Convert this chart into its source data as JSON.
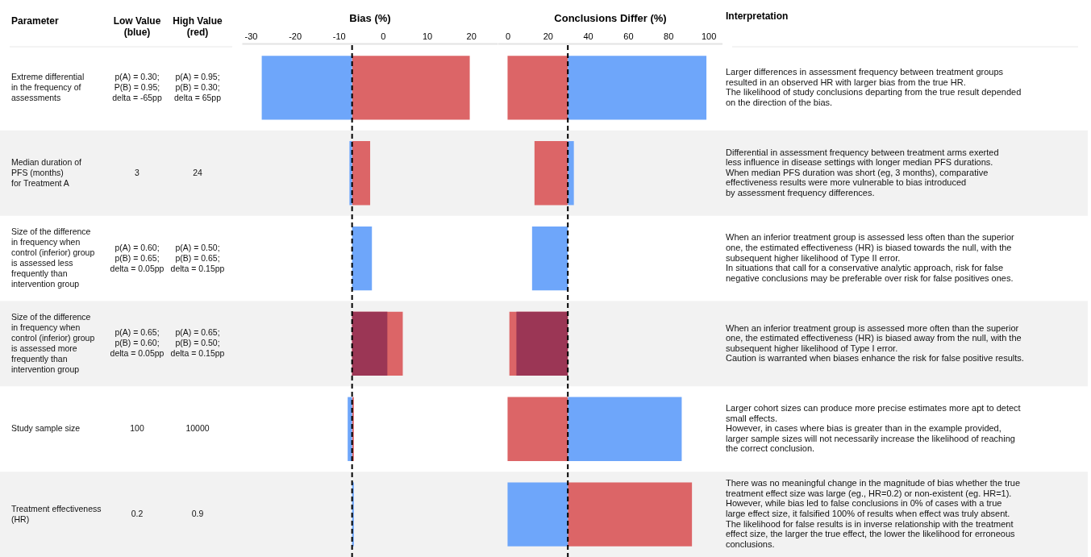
{
  "chart_data": [
    {
      "type": "other",
      "annotations": [
        "Parameter",
        "Low Value\n(blue)",
        "High Value\n(red)",
        "Extreme differential\nin the frequency of\nassessments",
        "p(A) = 0.30;\nP(B) = 0.95;\ndelta = -65pp",
        "p(A) = 0.95;\np(B) = 0.30;\ndelta = 65pp",
        "Median duration of\nPFS (months)\nfor Treatment A",
        "3",
        "24",
        "Size of the difference\nin frequency when\ncontrol (inferior) group\nis assessed less\nfrequently than\nintervention group",
        "p(A) = 0.60;\np(B) = 0.65;\ndelta = 0.05pp",
        "p(A) = 0.50;\np(B) = 0.65;\ndelta = 0.15pp",
        "Size of the difference\nin frequency when\ncontrol (inferior) group\nis assessed more\nfrequently than\nintervention group",
        "p(A) = 0.65;\np(B) = 0.60;\ndelta = 0.05pp",
        "p(A) = 0.65;\np(B) = 0.50;\ndelta = 0.15pp",
        "Study sample size",
        "100",
        "10000",
        "Treatment effectiveness\n(HR)",
        "0.2",
        "0.9"
      ]
    },
    {
      "type": "bar",
      "orientation": "horizontal",
      "xlabel": "Bias (%)",
      "categories": [
        null,
        null,
        null,
        null,
        null,
        null
      ],
      "series": [
        {
          "color": "#dc6567",
          "base": [
            -7,
            -7,
            null,
            -7,
            -7,
            null
          ],
          "values": [
            26.7,
            4.1,
            null,
            11.5,
            0.4,
            null
          ]
        },
        {
          "colors": [
            "#6ea6fa",
            "#6ea6fa",
            "#6ea6fa",
            "#9b3655",
            "#6ea6fa",
            "#6ea6fa"
          ],
          "base": [
            -7,
            -7,
            -7,
            -7,
            -7,
            -7
          ],
          "values": [
            -20.5,
            -0.6,
            4.5,
            8.0,
            -1.0,
            0.4
          ]
        }
      ],
      "xlim": [
        -32,
        26
      ],
      "xticks": [
        -30,
        -20,
        -10,
        0,
        10,
        20
      ],
      "tick_labels": "x",
      "ref_lines": [
        {
          "axis": "x",
          "value": -7,
          "color": "#000000",
          "line_style": "dashed"
        }
      ]
    },
    {
      "type": "bar",
      "orientation": "horizontal",
      "xlabel": "Conclusions Differ (%)",
      "categories": [
        null,
        null,
        null,
        null,
        null,
        null
      ],
      "series": [
        {
          "color": "#dc6567",
          "base": [
            30,
            30,
            null,
            30,
            30,
            30
          ],
          "values": [
            -30,
            -16.6,
            null,
            -29.1,
            -30,
            61.8
          ]
        },
        {
          "colors": [
            "#6ea6fa",
            "#6ea6fa",
            "#6ea6fa",
            "#9b3655",
            "#6ea6fa",
            "#6ea6fa"
          ],
          "base": [
            30,
            30,
            30,
            30,
            30,
            30
          ],
          "values": [
            69,
            3,
            -17.8,
            -25.6,
            56.7,
            -30
          ]
        }
      ],
      "xlim": [
        -5,
        107
      ],
      "xticks": [
        0,
        20,
        40,
        60,
        80,
        100
      ],
      "tick_labels": "x",
      "ref_lines": [
        {
          "axis": "x",
          "value": 30,
          "color": "#000000",
          "line_style": "dashed"
        }
      ]
    },
    {
      "type": "other",
      "title": "Interpretation",
      "annotations": [
        "Larger differences in assessment frequency between treatment groups\nresulted in an observed HR with larger bias from the true HR.\nThe likelihood of study conclusions departing from the true result depended\non the direction of the bias.",
        "Differential in assessment frequency between treatment arms exerted\nless influence in disease settings with longer median PFS durations.\nWhen median PFS duration was short (eg, 3 months), comparative\neffectiveness results were more vulnerable to bias introduced\nby assessment frequency differences.",
        "When an inferior treatment group is assessed less often than the superior\none, the estimated effectiveness (HR) is biased towards the null, with the\nsubsequent  higher likelihood of Type II error.\nIn situations that call for a conservative analytic approach, risk for false\nnegative conclusions may be preferable over risk for false positives ones.",
        "When an inferior treatment group is assessed more often than the superior\none, the estimated effectiveness (HR) is biased away from the null, with the\nsubsequent  higher likelihood of Type I error.\nCaution is warranted when biases enhance the risk for false positive results.",
        "Larger cohort sizes can produce more precise estimates more apt to detect\nsmall effects.\nHowever, in cases where bias is greater than in the example provided,\nlarger sample sizes will not necessarily increase the likelihood of reaching\nthe correct conclusion.",
        "There was no meaningful change in the magnitude of bias whether the true\ntreatment effect size was large (eg., HR=0.2) or non-existent (eg. HR=1).\nHowever, while bias led to false conclusions in 0% of cases with a true\nlarge effect size, it falsified 100% of results when effect was truly absent.\nThe likelihood for false results is in inverse relationship with the treatment\neffect size, the larger the true effect, the lower the likelihood for erroneous\nconclusions."
      ]
    }
  ]
}
